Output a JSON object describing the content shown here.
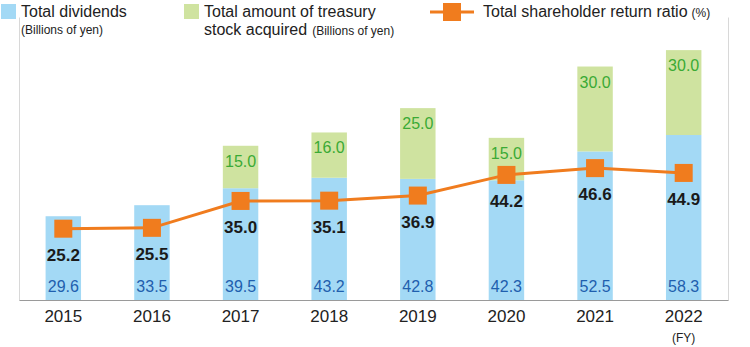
{
  "chart_data": {
    "type": "bar",
    "stacked": true,
    "data_labels": true,
    "tick_labels": "x",
    "xlabel": "(FY)",
    "ylabel": "(Billions of yen)",
    "y2label": "(%)",
    "categories": [
      "2015",
      "2016",
      "2017",
      "2018",
      "2019",
      "2020",
      "2021",
      "2022"
    ],
    "ylim": [
      0,
      100
    ],
    "y2lim": [
      0,
      100
    ],
    "series": [
      {
        "name": "Total dividends",
        "type": "bar",
        "color": "#a3d9f5",
        "values": [
          29.6,
          33.5,
          39.5,
          43.2,
          42.8,
          42.3,
          52.5,
          58.3
        ]
      },
      {
        "name": "Total amount of treasury stock acquired",
        "type": "bar",
        "color": "#cfe3a0",
        "values": [
          null,
          null,
          15,
          16,
          25,
          15,
          30,
          30
        ],
        "value_labels": [
          null,
          null,
          "15.0",
          "16.0",
          "25.0",
          "15.0",
          "30.0",
          "30.0"
        ]
      },
      {
        "name": "Total shareholder return ratio",
        "type": "line",
        "axis": "y2",
        "color": "#f07c1e",
        "marker": "square",
        "values": [
          25.2,
          25.5,
          35,
          35.1,
          36.9,
          44.2,
          46.6,
          44.9
        ],
        "value_labels": [
          "25.2",
          "25.5",
          "35.0",
          "35.1",
          "36.9",
          "44.2",
          "46.6",
          "44.9"
        ]
      }
    ]
  }
}
